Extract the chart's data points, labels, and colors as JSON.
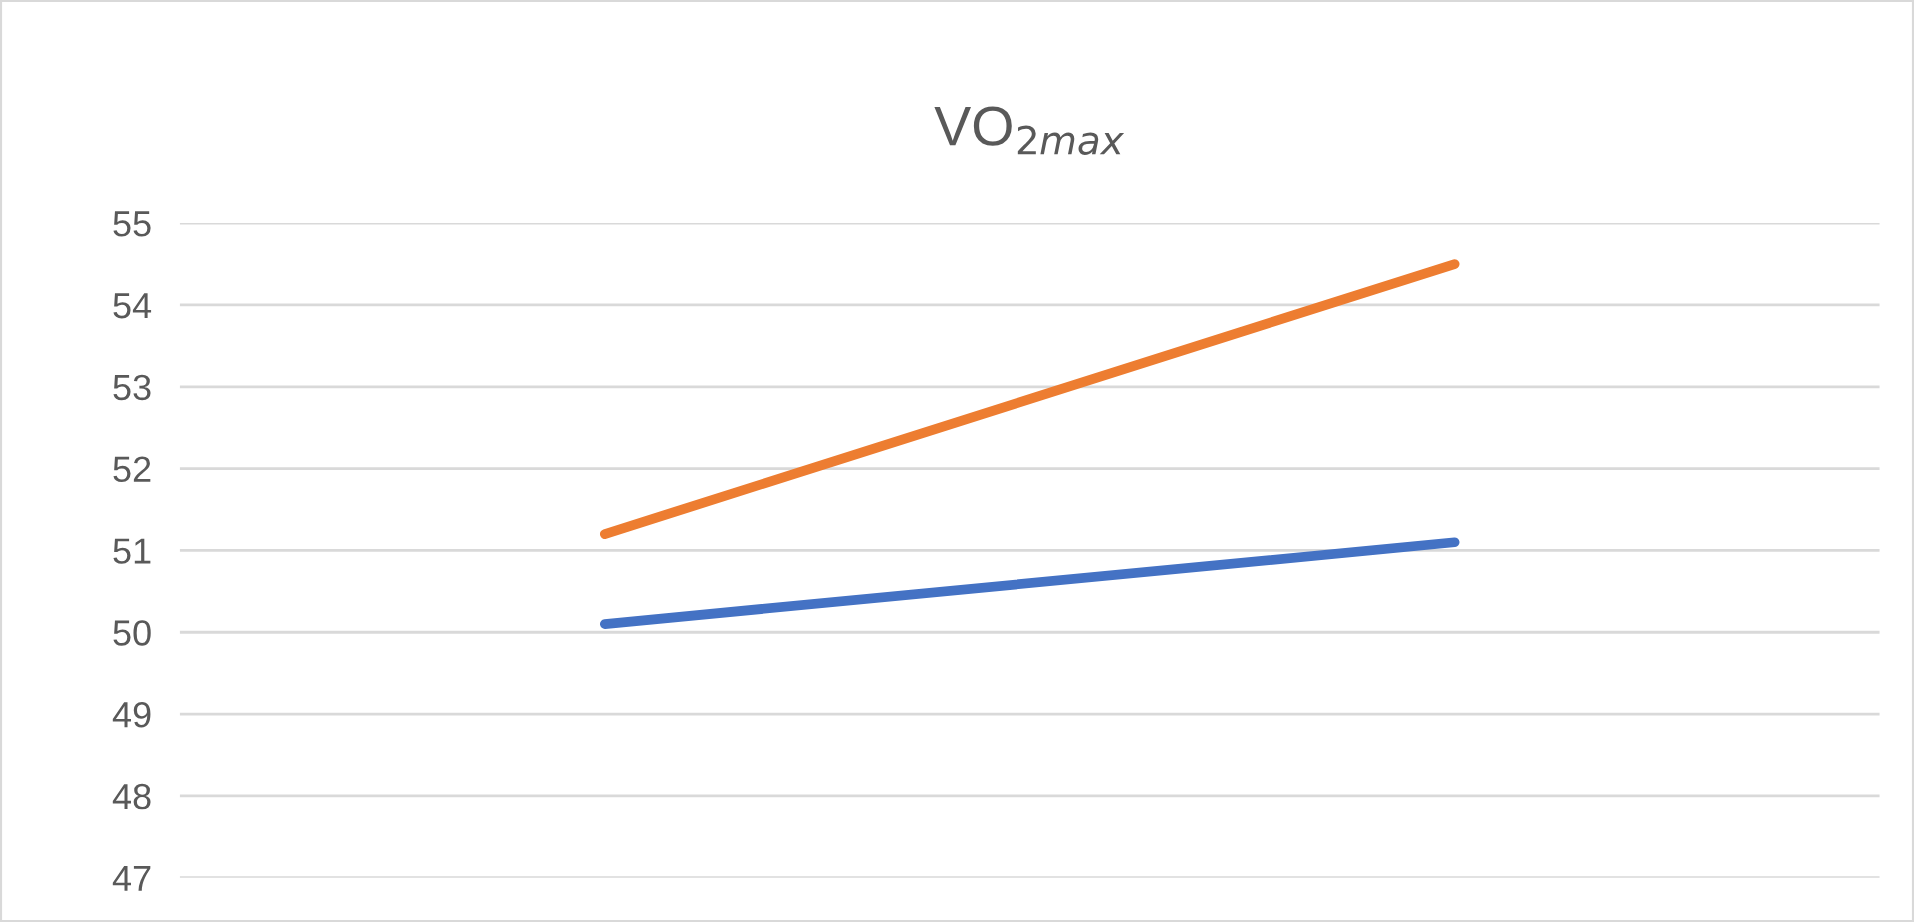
{
  "chart_data": {
    "type": "line",
    "title": "VO$_{2max}$",
    "categories": [
      null,
      null
    ],
    "series": [
      {
        "color": "#4472c4",
        "values": [
          50.1,
          51.1
        ]
      },
      {
        "color": "#ed7d31",
        "values": [
          51.2,
          54.5
        ]
      }
    ],
    "ylim": [
      47,
      55
    ],
    "yticks": [
      47,
      48,
      49,
      50,
      51,
      52,
      53,
      54,
      55
    ],
    "grid": "y",
    "tick_labels": "y",
    "marker": "none",
    "line_style": "solid"
  }
}
